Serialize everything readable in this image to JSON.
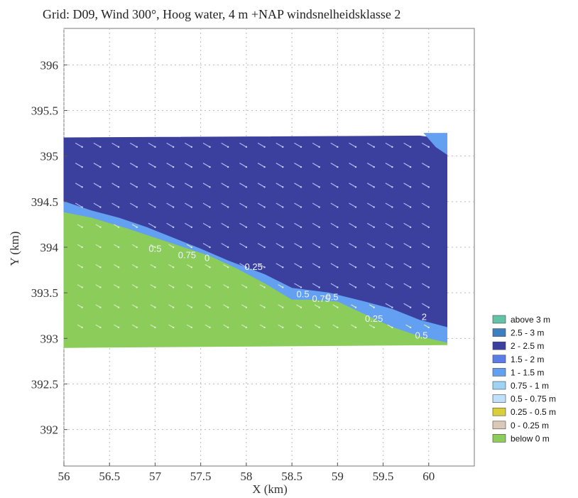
{
  "chart_data": {
    "type": "heatmap",
    "title": "Grid: D09, Wind 300°, Hoog water, 4 m +NAP windsnelheidsklasse 2",
    "xlabel": "X (km)",
    "ylabel": "Y (km)",
    "xlim": [
      56,
      60.5
    ],
    "ylim": [
      391.6,
      396.4
    ],
    "xticks": [
      "56",
      "56.5",
      "57",
      "57.5",
      "58",
      "58.5",
      "59",
      "59.5",
      "60"
    ],
    "yticks": [
      "392",
      "392.5",
      "393",
      "393.5",
      "394",
      "394.5",
      "395",
      "395.5",
      "396"
    ],
    "grid": true,
    "legend_position": "right",
    "legend": [
      {
        "label": "above 3 m",
        "color": "#63c3a6"
      },
      {
        "label": "2.5 - 3 m",
        "color": "#3e7fc2"
      },
      {
        "label": "2 - 2.5 m",
        "color": "#3b3f9e"
      },
      {
        "label": "1.5 - 2 m",
        "color": "#5a7de8"
      },
      {
        "label": "1 - 1.5 m",
        "color": "#63a0f2"
      },
      {
        "label": "0.75 - 1 m",
        "color": "#9ed3f5"
      },
      {
        "label": "0.5 - 0.75 m",
        "color": "#bfe0fb"
      },
      {
        "label": "0.25 - 0.5 m",
        "color": "#d8cf3a"
      },
      {
        "label": "0 - 0.25 m",
        "color": "#dcc8b7"
      },
      {
        "label": "below 0 m",
        "color": "#8ccc5a"
      }
    ],
    "domain": {
      "x": [
        56,
        60.2
      ],
      "y": [
        392.9,
        395.2
      ]
    },
    "contour_labels": [
      {
        "text": "0.5",
        "x": 57.0,
        "y": 393.95
      },
      {
        "text": "0.75",
        "x": 57.35,
        "y": 393.88
      },
      {
        "text": "0",
        "x": 57.57,
        "y": 393.85
      },
      {
        "text": "0.25",
        "x": 58.08,
        "y": 393.75
      },
      {
        "text": "0.5",
        "x": 58.62,
        "y": 393.45
      },
      {
        "text": "0.75",
        "x": 58.82,
        "y": 393.4
      },
      {
        "text": "0.5",
        "x": 58.94,
        "y": 393.42
      },
      {
        "text": "0.25",
        "x": 59.4,
        "y": 393.18
      },
      {
        "text": "2",
        "x": 59.95,
        "y": 393.2
      },
      {
        "text": "0.5",
        "x": 59.92,
        "y": 393.0
      }
    ],
    "regions": [
      {
        "name": "deep-water",
        "color": "#3b3f9e",
        "polygon": [
          [
            56,
            395.2
          ],
          [
            59.9,
            395.22
          ],
          [
            60.2,
            395.18
          ],
          [
            60.2,
            393.12
          ],
          [
            59.9,
            393.2
          ],
          [
            59.6,
            393.32
          ],
          [
            59.3,
            393.4
          ],
          [
            58.9,
            393.5
          ],
          [
            58.5,
            393.55
          ],
          [
            58.2,
            393.7
          ],
          [
            57.8,
            393.85
          ],
          [
            57.5,
            393.98
          ],
          [
            57.2,
            394.1
          ],
          [
            56.9,
            394.22
          ],
          [
            56.6,
            394.32
          ],
          [
            56.3,
            394.4
          ],
          [
            56,
            394.5
          ]
        ]
      },
      {
        "name": "mid-band",
        "color": "#63a0f2",
        "polygon": [
          [
            56,
            394.5
          ],
          [
            56.3,
            394.4
          ],
          [
            56.6,
            394.32
          ],
          [
            56.9,
            394.22
          ],
          [
            57.2,
            394.1
          ],
          [
            57.5,
            393.98
          ],
          [
            57.8,
            393.85
          ],
          [
            58.2,
            393.7
          ],
          [
            58.5,
            393.55
          ],
          [
            58.9,
            393.5
          ],
          [
            59.3,
            393.4
          ],
          [
            59.6,
            393.32
          ],
          [
            59.9,
            393.2
          ],
          [
            60.2,
            393.12
          ],
          [
            60.2,
            392.95
          ],
          [
            59.9,
            393.02
          ],
          [
            59.6,
            393.12
          ],
          [
            59.3,
            393.26
          ],
          [
            59.0,
            393.4
          ],
          [
            58.7,
            393.42
          ],
          [
            58.5,
            393.42
          ],
          [
            58.2,
            393.6
          ],
          [
            57.9,
            393.76
          ],
          [
            57.6,
            393.9
          ],
          [
            57.3,
            394.0
          ],
          [
            57.0,
            394.1
          ],
          [
            56.7,
            394.2
          ],
          [
            56.3,
            394.32
          ],
          [
            56,
            394.38
          ]
        ]
      },
      {
        "name": "northeast-corner",
        "color": "#63a0f2",
        "polygon": [
          [
            59.95,
            395.25
          ],
          [
            60.2,
            395.25
          ],
          [
            60.2,
            395.02
          ],
          [
            60.08,
            395.1
          ]
        ]
      },
      {
        "name": "land",
        "color": "#8ccc5a",
        "polygon": [
          [
            56,
            394.38
          ],
          [
            56.3,
            394.32
          ],
          [
            56.7,
            394.2
          ],
          [
            57.0,
            394.1
          ],
          [
            57.3,
            394.0
          ],
          [
            57.6,
            393.9
          ],
          [
            57.9,
            393.76
          ],
          [
            58.2,
            393.6
          ],
          [
            58.5,
            393.42
          ],
          [
            58.7,
            393.42
          ],
          [
            59.0,
            393.4
          ],
          [
            59.3,
            393.26
          ],
          [
            59.6,
            393.12
          ],
          [
            59.9,
            393.02
          ],
          [
            60.2,
            392.95
          ],
          [
            60.2,
            392.93
          ],
          [
            56,
            392.9
          ]
        ]
      }
    ]
  }
}
